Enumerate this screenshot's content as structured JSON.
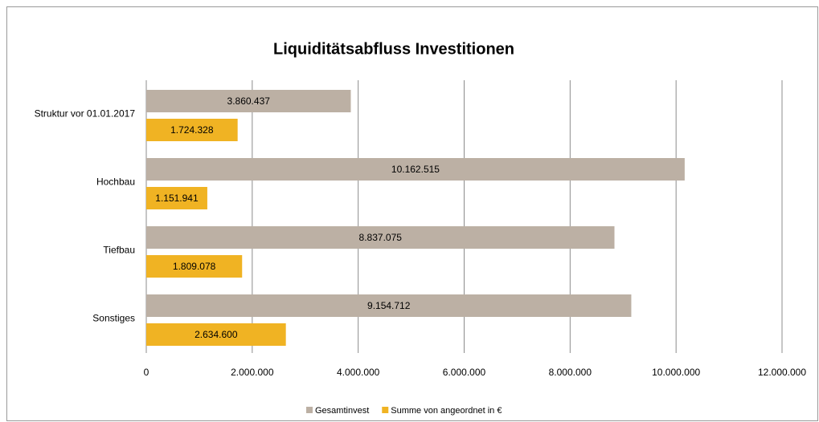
{
  "chart_data": {
    "type": "hbar",
    "title": "Liquiditätsabfluss Investitionen",
    "categories": [
      "Struktur vor 01.01.2017",
      "Hochbau",
      "Tiefbau",
      "Sonstiges"
    ],
    "series": [
      {
        "name": "Gesamtinvest",
        "color": "#bcb0a4",
        "values": [
          3860437,
          10162515,
          8837075,
          9154712
        ],
        "value_labels": [
          "3.860.437",
          "10.162.515",
          "8.837.075",
          "9.154.712"
        ]
      },
      {
        "name": "Summe von angeordnet in €",
        "color": "#f0b323",
        "values": [
          1724328,
          1151941,
          1809078,
          2634600
        ],
        "value_labels": [
          "1.724.328",
          "1.151.941",
          "1.809.078",
          "2.634.600"
        ]
      }
    ],
    "xlim": [
      0,
      12000000
    ],
    "xticks": [
      0,
      {
        "value": 2000000,
        "label": "2.000.000"
      },
      {
        "value": 4000000,
        "label": "4.000.000"
      },
      {
        "value": 6000000,
        "label": "6.000.000"
      },
      {
        "value": 8000000,
        "label": "8.000.000"
      },
      {
        "value": 10000000,
        "label": "10.000.000"
      },
      {
        "value": 12000000,
        "label": "12.000.000"
      }
    ],
    "grid": true,
    "legend": "bottom"
  }
}
